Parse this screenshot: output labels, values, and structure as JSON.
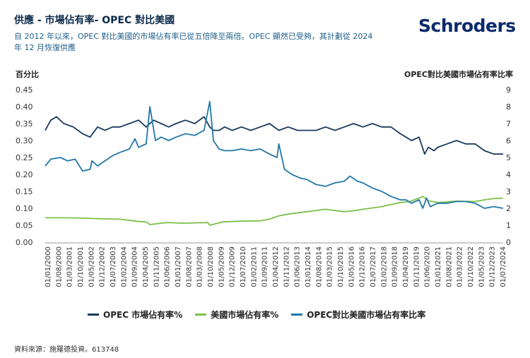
{
  "header": {
    "title": "供應 - 市場佔有率- OPEC 對比美國",
    "subtitle": "自 2012 年以來，OPEC 對比美國的市場佔有率已從五倍降至兩倍。OPEC 顯然已受夠，其計劃從 2024 年 12 月恢復供應",
    "logo_text": "Schroders"
  },
  "footer": {
    "source": "資料來源：施羅德投資。613748"
  },
  "colors": {
    "opec": "#1b3a5c",
    "us": "#7cc04a",
    "ratio": "#1f78a8",
    "grid": "#dddddd"
  },
  "chart_data": {
    "type": "line",
    "ylabel_left": "百分比",
    "ylabel_right": "OPEC對比美國市場佔有率比率",
    "ylim_left": [
      0,
      0.45
    ],
    "ylim_right": [
      0,
      9
    ],
    "yticks_left": [
      "0.45",
      "0.40",
      "0.35",
      "0.30",
      "0.25",
      "0.20",
      "0.15",
      "0.10",
      "0.05",
      "0.00"
    ],
    "yticks_right": [
      "9",
      "8",
      "7",
      "6",
      "5",
      "4",
      "3",
      "2",
      "1",
      "0"
    ],
    "x_tick_labels": [
      "01/01/2000",
      "01/08/2000",
      "01/03/2001",
      "01/10/2001",
      "01/05/2002",
      "01/12/2002",
      "01/07/2003",
      "01/02/2004",
      "01/09/2004",
      "01/04/2005",
      "01/11/2005",
      "01/06/2006",
      "01/01/2007",
      "01/08/2007",
      "01/03/2008",
      "01/10/2008",
      "01/05/2009",
      "01/12/2009",
      "01/07/2010",
      "01/02/2011",
      "01/09/2011",
      "01/04/2012",
      "01/11/2012",
      "01/06/2013",
      "01/01/2014",
      "01/08/2014",
      "01/03/2015",
      "01/10/2015",
      "01/05/2016",
      "01/12/2016",
      "01/07/2017",
      "01/02/2018",
      "01/09/2018",
      "01/04/2019",
      "01/11/2019",
      "01/06/2020",
      "01/01/2021",
      "01/08/2021",
      "01/03/2022",
      "01/10/2022",
      "01/05/2023",
      "01/12/2023",
      "01/07/2024"
    ],
    "x_range": [
      2000.0,
      2024.5
    ],
    "grid": false,
    "legend_position": "bottom",
    "series": [
      {
        "name": "OPEC 市場佔有率%",
        "axis": "left",
        "color_key": "opec",
        "x": [
          2000.0,
          2000.3,
          2000.6,
          2001.0,
          2001.5,
          2002.0,
          2002.4,
          2002.8,
          2003.2,
          2003.6,
          2004.0,
          2004.5,
          2005.0,
          2005.4,
          2005.8,
          2006.2,
          2006.6,
          2007.0,
          2007.5,
          2008.0,
          2008.5,
          2008.8,
          2009.0,
          2009.3,
          2009.6,
          2010.0,
          2010.5,
          2011.0,
          2011.5,
          2012.0,
          2012.5,
          2013.0,
          2013.5,
          2014.0,
          2014.5,
          2015.0,
          2015.5,
          2016.0,
          2016.5,
          2017.0,
          2017.5,
          2018.0,
          2018.5,
          2019.0,
          2019.3,
          2019.6,
          2020.0,
          2020.3,
          2020.5,
          2020.8,
          2021.0,
          2021.5,
          2022.0,
          2022.5,
          2023.0,
          2023.5,
          2024.0,
          2024.5
        ],
        "y": [
          0.33,
          0.36,
          0.37,
          0.35,
          0.34,
          0.32,
          0.31,
          0.34,
          0.33,
          0.34,
          0.34,
          0.35,
          0.36,
          0.34,
          0.36,
          0.35,
          0.34,
          0.35,
          0.36,
          0.35,
          0.37,
          0.34,
          0.33,
          0.33,
          0.34,
          0.33,
          0.34,
          0.33,
          0.34,
          0.35,
          0.33,
          0.34,
          0.33,
          0.33,
          0.33,
          0.34,
          0.33,
          0.34,
          0.35,
          0.34,
          0.35,
          0.34,
          0.34,
          0.32,
          0.31,
          0.3,
          0.31,
          0.26,
          0.28,
          0.27,
          0.28,
          0.29,
          0.3,
          0.29,
          0.29,
          0.27,
          0.26,
          0.26
        ]
      },
      {
        "name": "美國市場佔有率%",
        "axis": "left",
        "color_key": "us",
        "x": [
          2000.0,
          2001.0,
          2002.0,
          2003.0,
          2004.0,
          2005.0,
          2005.4,
          2005.6,
          2006.5,
          2007.5,
          2008.0,
          2008.7,
          2008.8,
          2009.5,
          2010.5,
          2011.5,
          2012.0,
          2012.5,
          2013.0,
          2014.0,
          2015.0,
          2016.0,
          2016.5,
          2017.0,
          2018.0,
          2019.0,
          2019.5,
          2020.0,
          2020.2,
          2020.5,
          2021.0,
          2022.0,
          2023.0,
          2023.5,
          2024.0,
          2024.5
        ],
        "y": [
          0.072,
          0.072,
          0.071,
          0.069,
          0.068,
          0.061,
          0.06,
          0.052,
          0.058,
          0.056,
          0.057,
          0.058,
          0.05,
          0.06,
          0.062,
          0.063,
          0.068,
          0.078,
          0.083,
          0.09,
          0.097,
          0.09,
          0.093,
          0.097,
          0.105,
          0.117,
          0.12,
          0.13,
          0.135,
          0.122,
          0.117,
          0.121,
          0.12,
          0.125,
          0.129,
          0.13
        ]
      },
      {
        "name": "OPEC對比美國市場佔有率比率",
        "axis": "right",
        "color_key": "ratio",
        "x": [
          2000.0,
          2000.3,
          2000.8,
          2001.2,
          2001.6,
          2002.0,
          2002.4,
          2002.5,
          2002.8,
          2003.2,
          2003.6,
          2004.0,
          2004.5,
          2004.8,
          2005.0,
          2005.4,
          2005.6,
          2005.9,
          2006.2,
          2006.6,
          2007.0,
          2007.5,
          2008.0,
          2008.5,
          2008.8,
          2009.0,
          2009.3,
          2009.6,
          2010.0,
          2010.5,
          2011.0,
          2011.5,
          2012.0,
          2012.4,
          2012.5,
          2012.8,
          2013.2,
          2013.6,
          2014.0,
          2014.5,
          2015.0,
          2015.5,
          2016.0,
          2016.3,
          2016.7,
          2017.0,
          2017.5,
          2018.0,
          2018.5,
          2019.0,
          2019.3,
          2019.6,
          2020.0,
          2020.2,
          2020.4,
          2020.6,
          2021.0,
          2021.5,
          2022.0,
          2022.5,
          2023.0,
          2023.5,
          2024.0,
          2024.5
        ],
        "y": [
          4.5,
          4.9,
          5.0,
          4.8,
          4.9,
          4.2,
          4.3,
          4.8,
          4.5,
          4.8,
          5.1,
          5.3,
          5.5,
          6.1,
          5.6,
          5.8,
          8.0,
          6.0,
          6.2,
          6.0,
          6.2,
          6.4,
          6.3,
          6.6,
          8.3,
          6.0,
          5.5,
          5.4,
          5.4,
          5.5,
          5.4,
          5.5,
          5.2,
          5.0,
          5.8,
          4.3,
          4.0,
          3.8,
          3.7,
          3.4,
          3.3,
          3.5,
          3.6,
          3.9,
          3.6,
          3.5,
          3.2,
          3.0,
          2.7,
          2.5,
          2.5,
          2.3,
          2.5,
          2.0,
          2.6,
          2.1,
          2.3,
          2.3,
          2.4,
          2.4,
          2.3,
          2.0,
          2.1,
          2.0
        ]
      }
    ]
  }
}
